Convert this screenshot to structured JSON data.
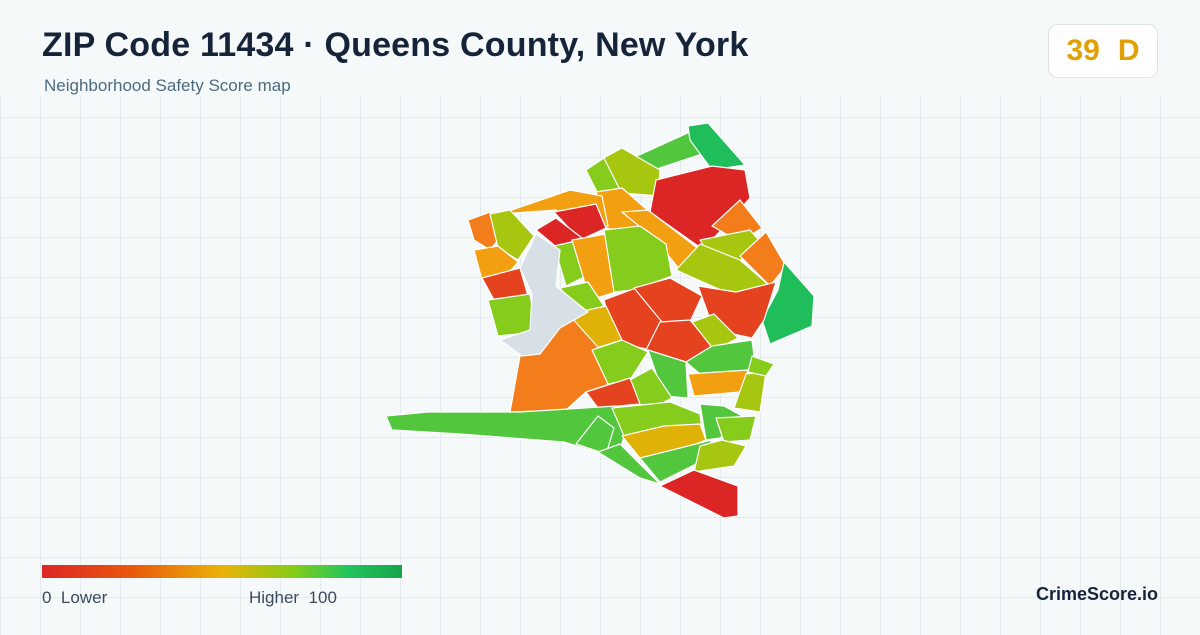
{
  "header": {
    "title": "ZIP Code 11434 · Queens County, New York",
    "subtitle": "Neighborhood Safety Score map"
  },
  "score": {
    "value": "39",
    "grade": "D",
    "color": "#e0a106"
  },
  "legend": {
    "min_value": "0",
    "min_label": "Lower",
    "max_label": "Higher",
    "max_value": "100",
    "colors": [
      "#dc2626",
      "#ea580c",
      "#eab308",
      "#84cc16",
      "#22c55e",
      "#16a34a"
    ]
  },
  "brand": "CrimeScore.io",
  "map": {
    "no_data_color": "#d7dfe7",
    "region_colors": {
      "red": "#dc2626",
      "red_orange": "#e5421f",
      "orange": "#f27d1a",
      "amber": "#f2a012",
      "yellow": "#e0b106",
      "yellow_green": "#a7c610",
      "lime": "#86cc1c",
      "green": "#52c63c",
      "emerald": "#1fbe5b"
    }
  }
}
